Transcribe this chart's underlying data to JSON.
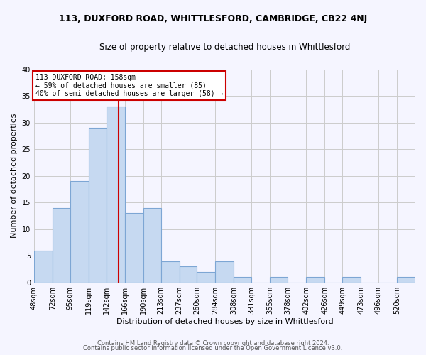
{
  "title": "113, DUXFORD ROAD, WHITTLESFORD, CAMBRIDGE, CB22 4NJ",
  "subtitle": "Size of property relative to detached houses in Whittlesford",
  "xlabel": "Distribution of detached houses by size in Whittlesford",
  "ylabel": "Number of detached properties",
  "bar_labels": [
    "48sqm",
    "72sqm",
    "95sqm",
    "119sqm",
    "142sqm",
    "166sqm",
    "190sqm",
    "213sqm",
    "237sqm",
    "260sqm",
    "284sqm",
    "308sqm",
    "331sqm",
    "355sqm",
    "378sqm",
    "402sqm",
    "426sqm",
    "449sqm",
    "473sqm",
    "496sqm",
    "520sqm"
  ],
  "bar_values": [
    6,
    14,
    19,
    29,
    33,
    13,
    14,
    4,
    3,
    2,
    4,
    1,
    0,
    1,
    0,
    1,
    0,
    1,
    0,
    0,
    1
  ],
  "bar_color": "#c6d9f1",
  "bar_edgecolor": "#7da6d4",
  "property_size_sqm": 158,
  "bin_edges": [
    48,
    72,
    95,
    119,
    142,
    166,
    190,
    213,
    237,
    260,
    284,
    308,
    331,
    355,
    378,
    402,
    426,
    449,
    473,
    496,
    520,
    544
  ],
  "annotation_text": "113 DUXFORD ROAD: 158sqm\n← 59% of detached houses are smaller (85)\n40% of semi-detached houses are larger (58) →",
  "annotation_box_color": "#ffffff",
  "annotation_box_edgecolor": "#cc0000",
  "vline_color": "#cc0000",
  "ylim": [
    0,
    40
  ],
  "yticks": [
    0,
    5,
    10,
    15,
    20,
    25,
    30,
    35,
    40
  ],
  "grid_color": "#cccccc",
  "footer_line1": "Contains HM Land Registry data © Crown copyright and database right 2024.",
  "footer_line2": "Contains public sector information licensed under the Open Government Licence v3.0.",
  "bg_color": "#f5f5ff",
  "title_fontsize": 9,
  "subtitle_fontsize": 8.5,
  "xlabel_fontsize": 8,
  "ylabel_fontsize": 8,
  "tick_fontsize": 7,
  "footer_fontsize": 6
}
